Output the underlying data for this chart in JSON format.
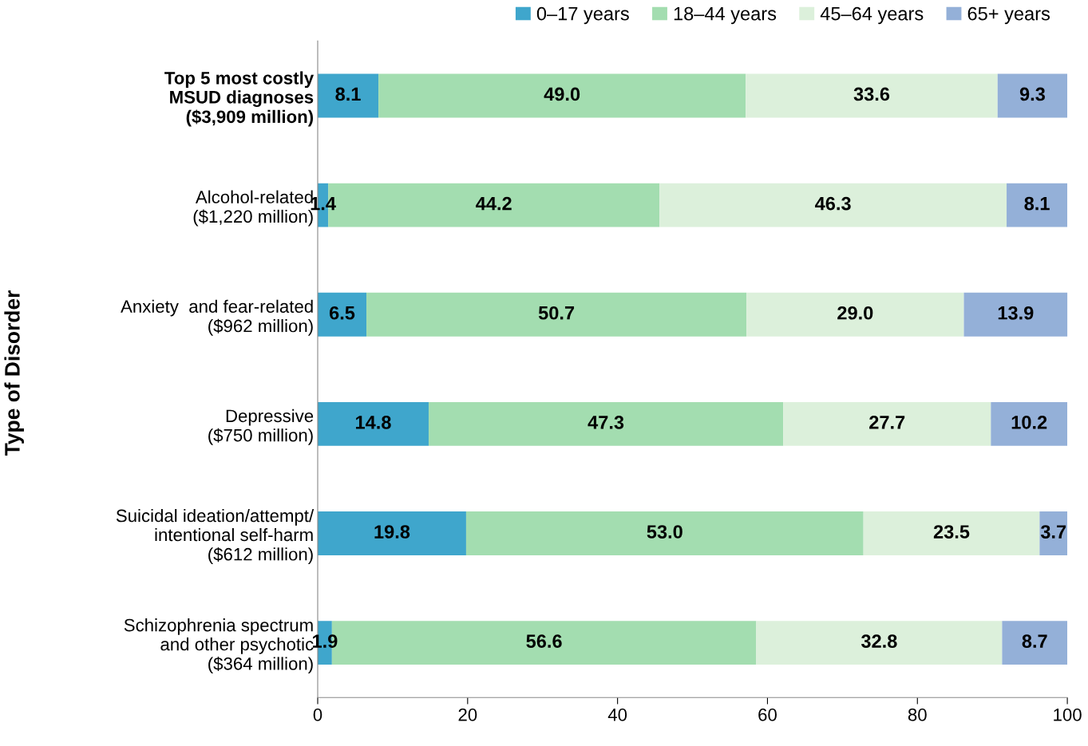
{
  "chart_data": {
    "type": "bar",
    "orientation": "horizontal",
    "stacked": true,
    "ylabel": "Type of Disorder",
    "categories": [
      "Top 5 most costly\nMSUD diagnoses\n($3,909 million)",
      "Alcohol-related\n($1,220 million)",
      "Anxiety  and fear-related\n($962 million)",
      "Depressive\n($750 million)",
      "Suicidal ideation/attempt/\nintentional self-harm\n($612 million)",
      "Schizophrenia spectrum\nand other psychotic\n($364 million)"
    ],
    "series": [
      {
        "name": "0–17 years",
        "color": "#3fa6cc",
        "values": [
          8.1,
          1.4,
          6.5,
          14.8,
          19.8,
          1.9
        ],
        "value_labels": [
          "8.1",
          "1.4",
          "6.5",
          "14.8",
          "19.8",
          "1.9"
        ]
      },
      {
        "name": "18–44 years",
        "color": "#a3ddb0",
        "values": [
          49.0,
          44.2,
          50.7,
          47.3,
          53.0,
          56.6
        ],
        "value_labels": [
          "49.0",
          "44.2",
          "50.7",
          "47.3",
          "53.0",
          "56.6"
        ]
      },
      {
        "name": "45–64 years",
        "color": "#dcf0db",
        "values": [
          33.6,
          46.3,
          29.0,
          27.7,
          23.5,
          32.8
        ],
        "value_labels": [
          "33.6",
          "46.3",
          "29.0",
          "27.7",
          "23.5",
          "32.8"
        ]
      },
      {
        "name": "65+ years",
        "color": "#94b0d8",
        "values": [
          9.3,
          8.1,
          13.9,
          10.2,
          3.7,
          8.7
        ],
        "value_labels": [
          "9.3",
          "8.1",
          "13.9",
          "10.2",
          "3.7",
          "8.7"
        ]
      }
    ],
    "xlim": [
      0,
      100
    ],
    "xticks": [
      0,
      20,
      40,
      60,
      80,
      100
    ],
    "grid": false,
    "legend": "top"
  }
}
